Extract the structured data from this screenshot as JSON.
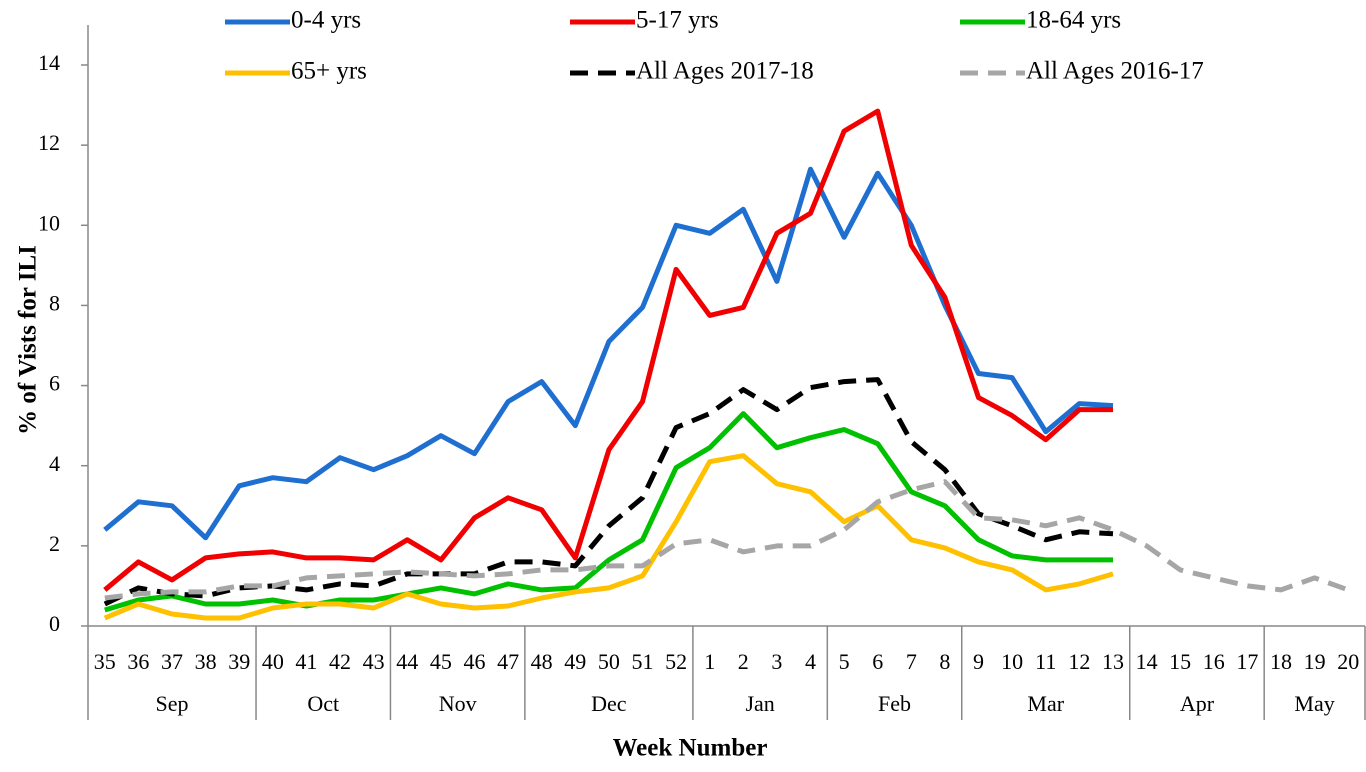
{
  "chart_data": {
    "type": "line",
    "y_label": "% of Vists for ILI",
    "x_label": "Week Number",
    "categories": [
      "35",
      "36",
      "37",
      "38",
      "39",
      "40",
      "41",
      "42",
      "43",
      "44",
      "45",
      "46",
      "47",
      "48",
      "49",
      "50",
      "51",
      "52",
      "1",
      "2",
      "3",
      "4",
      "5",
      "6",
      "7",
      "8",
      "9",
      "10",
      "11",
      "12",
      "13",
      "14",
      "15",
      "16",
      "17",
      "18",
      "19",
      "20"
    ],
    "months": [
      {
        "label": "Sep",
        "span": 5
      },
      {
        "label": "Oct",
        "span": 4
      },
      {
        "label": "Nov",
        "span": 4
      },
      {
        "label": "Dec",
        "span": 5
      },
      {
        "label": "Jan",
        "span": 4
      },
      {
        "label": "Feb",
        "span": 4
      },
      {
        "label": "Mar",
        "span": 5
      },
      {
        "label": "Apr",
        "span": 4
      },
      {
        "label": "May",
        "span": 3
      }
    ],
    "ylim": [
      0,
      14
    ],
    "yticks": [
      0,
      2,
      4,
      6,
      8,
      10,
      12,
      14
    ],
    "series": [
      {
        "name": "0-4 yrs",
        "color": "#1f6fd1",
        "dashed": false,
        "values": [
          2.4,
          3.1,
          3.0,
          2.2,
          3.5,
          3.7,
          3.6,
          4.2,
          3.9,
          4.25,
          4.75,
          4.3,
          5.6,
          6.1,
          5.0,
          7.1,
          7.95,
          10.0,
          9.8,
          10.4,
          8.6,
          11.4,
          9.7,
          11.3,
          10.0,
          8.0,
          6.3,
          6.2,
          4.85,
          5.55,
          5.5,
          null,
          null,
          null,
          null,
          null,
          null,
          null
        ]
      },
      {
        "name": "5-17 yrs",
        "color": "#f00000",
        "dashed": false,
        "values": [
          0.9,
          1.6,
          1.15,
          1.7,
          1.8,
          1.85,
          1.7,
          1.7,
          1.65,
          2.15,
          1.65,
          2.7,
          3.2,
          2.9,
          1.7,
          4.4,
          5.6,
          8.9,
          7.75,
          7.95,
          9.8,
          10.3,
          12.35,
          12.85,
          9.5,
          8.2,
          5.7,
          5.25,
          4.65,
          5.4,
          5.4,
          null,
          null,
          null,
          null,
          null,
          null,
          null
        ]
      },
      {
        "name": "18-64 yrs",
        "color": "#00c000",
        "dashed": false,
        "values": [
          0.4,
          0.65,
          0.75,
          0.55,
          0.55,
          0.65,
          0.5,
          0.65,
          0.65,
          0.8,
          0.95,
          0.8,
          1.05,
          0.9,
          0.95,
          1.65,
          2.15,
          3.95,
          4.45,
          5.3,
          4.45,
          4.7,
          4.9,
          4.55,
          3.35,
          3.0,
          2.15,
          1.75,
          1.65,
          1.65,
          1.65,
          null,
          null,
          null,
          null,
          null,
          null,
          null
        ]
      },
      {
        "name": "65+ yrs",
        "color": "#ffc000",
        "dashed": false,
        "values": [
          0.2,
          0.55,
          0.3,
          0.2,
          0.2,
          0.45,
          0.55,
          0.55,
          0.45,
          0.8,
          0.55,
          0.45,
          0.5,
          0.7,
          0.85,
          0.95,
          1.25,
          2.6,
          4.1,
          4.25,
          3.55,
          3.35,
          2.6,
          3.0,
          2.15,
          1.95,
          1.6,
          1.4,
          0.9,
          1.05,
          1.3,
          null,
          null,
          null,
          null,
          null,
          null,
          null
        ]
      },
      {
        "name": "All Ages 2017-18",
        "color": "#000000",
        "dashed": true,
        "values": [
          0.55,
          0.95,
          0.8,
          0.75,
          0.95,
          1.0,
          0.9,
          1.05,
          1.0,
          1.3,
          1.3,
          1.3,
          1.6,
          1.6,
          1.5,
          2.5,
          3.2,
          4.95,
          5.3,
          5.9,
          5.4,
          5.95,
          6.1,
          6.15,
          4.6,
          3.9,
          2.8,
          2.5,
          2.15,
          2.35,
          2.3,
          null,
          null,
          null,
          null,
          null,
          null,
          null
        ]
      },
      {
        "name": "All Ages 2016-17",
        "color": "#a6a6a6",
        "dashed": true,
        "values": [
          0.7,
          0.8,
          0.85,
          0.85,
          1.0,
          1.0,
          1.2,
          1.25,
          1.3,
          1.35,
          1.3,
          1.25,
          1.3,
          1.4,
          1.4,
          1.5,
          1.5,
          2.05,
          2.15,
          1.85,
          2.0,
          2.0,
          2.4,
          3.1,
          3.4,
          3.6,
          2.7,
          2.65,
          2.5,
          2.7,
          2.4,
          2.0,
          1.4,
          1.2,
          1.0,
          0.9,
          1.2,
          0.9
        ]
      }
    ]
  }
}
